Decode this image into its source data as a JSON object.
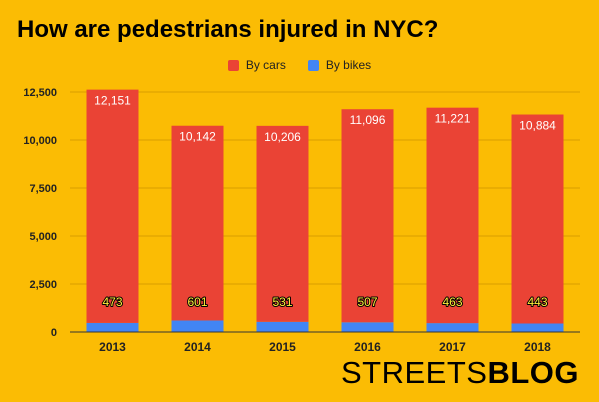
{
  "header": {
    "title": "How are pedestrians injured in NYC?"
  },
  "legend": {
    "items": [
      {
        "label": "By cars",
        "color": "#EA4335"
      },
      {
        "label": "By bikes",
        "color": "#4285F4"
      }
    ]
  },
  "brand": {
    "part1": "STREETS",
    "part2": "BLOG"
  },
  "chart_data": {
    "type": "bar",
    "stacked": true,
    "title": "How are pedestrians injured in NYC?",
    "xlabel": "",
    "ylabel": "",
    "categories": [
      "2013",
      "2014",
      "2015",
      "2016",
      "2017",
      "2018"
    ],
    "series": [
      {
        "name": "By bikes",
        "color": "#4285F4",
        "values": [
          473,
          601,
          531,
          507,
          463,
          443
        ]
      },
      {
        "name": "By cars",
        "color": "#EA4335",
        "values": [
          12151,
          10142,
          10206,
          11096,
          11221,
          10884
        ]
      }
    ],
    "yticks": [
      "0",
      "2,500",
      "5,000",
      "7,500",
      "10,000",
      "12,500"
    ],
    "ylim": [
      0,
      12500
    ],
    "grid": true,
    "legend_position": "top"
  }
}
